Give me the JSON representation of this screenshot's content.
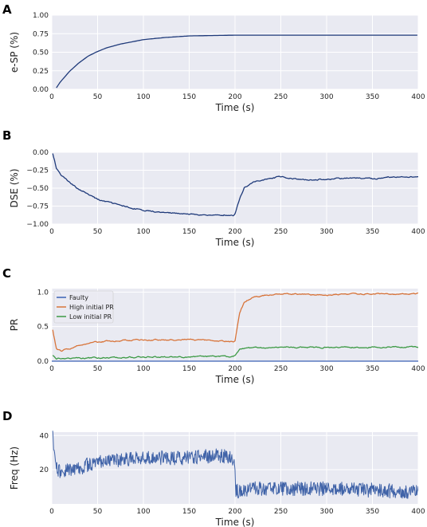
{
  "chart_data": [
    {
      "panel": "A",
      "type": "line",
      "xlabel": "Time (s)",
      "ylabel": "e-SP (%)",
      "xlim": [
        0,
        400
      ],
      "ylim": [
        0,
        1.0
      ],
      "xticks": [
        0,
        50,
        100,
        150,
        200,
        250,
        300,
        350,
        400
      ],
      "yticks": [
        0.0,
        0.25,
        0.5,
        0.75,
        1.0
      ],
      "ytick_labels": [
        "0.00",
        "0.25",
        "0.50",
        "0.75",
        "1.00"
      ],
      "grid": true,
      "series": [
        {
          "color": "#1f3a7a",
          "x": [
            5,
            10,
            20,
            30,
            40,
            50,
            60,
            75,
            100,
            125,
            150,
            175,
            200,
            250,
            300,
            350,
            400
          ],
          "y": [
            0.02,
            0.11,
            0.25,
            0.36,
            0.45,
            0.51,
            0.56,
            0.61,
            0.67,
            0.7,
            0.72,
            0.725,
            0.73,
            0.73,
            0.73,
            0.73,
            0.73
          ]
        }
      ]
    },
    {
      "panel": "B",
      "type": "line",
      "xlabel": "Time (s)",
      "ylabel": "DSE (%)",
      "xlim": [
        0,
        400
      ],
      "ylim": [
        -1.0,
        0.0
      ],
      "xticks": [
        0,
        50,
        100,
        150,
        200,
        250,
        300,
        350,
        400
      ],
      "yticks": [
        -1.0,
        -0.75,
        -0.5,
        -0.25,
        0.0
      ],
      "ytick_labels": [
        "−1.00",
        "−0.75",
        "−0.50",
        "−0.25",
        "0.00"
      ],
      "grid": true,
      "series": [
        {
          "color": "#1f3a7a",
          "x": [
            1,
            5,
            10,
            20,
            30,
            40,
            50,
            75,
            100,
            125,
            150,
            175,
            190,
            198,
            200,
            205,
            210,
            220,
            230,
            240,
            250,
            275,
            300,
            325,
            350,
            375,
            400
          ],
          "y": [
            -0.02,
            -0.22,
            -0.32,
            -0.43,
            -0.52,
            -0.58,
            -0.66,
            -0.74,
            -0.81,
            -0.84,
            -0.86,
            -0.88,
            -0.87,
            -0.88,
            -0.86,
            -0.65,
            -0.5,
            -0.42,
            -0.38,
            -0.36,
            -0.34,
            -0.38,
            -0.38,
            -0.36,
            -0.37,
            -0.34,
            -0.34
          ]
        }
      ]
    },
    {
      "panel": "C",
      "type": "line",
      "xlabel": "Time (s)",
      "ylabel": "PR",
      "xlim": [
        0,
        400
      ],
      "ylim": [
        0,
        1.05
      ],
      "xticks": [
        0,
        50,
        100,
        150,
        200,
        250,
        300,
        350,
        400
      ],
      "yticks": [
        0.0,
        0.5,
        1.0
      ],
      "ytick_labels": [
        "0.0",
        "0.5",
        "1.0"
      ],
      "grid": true,
      "legend": "top-left",
      "series": [
        {
          "name": "Faulty",
          "color": "#3b62b5",
          "x": [
            0,
            50,
            100,
            150,
            200,
            250,
            300,
            350,
            400
          ],
          "y": [
            0.0,
            0.0,
            0.0,
            0.0,
            0.0,
            0.0,
            0.0,
            0.0,
            0.0
          ]
        },
        {
          "name": "High initial PR",
          "color": "#d8743a",
          "x": [
            1,
            5,
            10,
            20,
            30,
            50,
            75,
            100,
            125,
            150,
            175,
            198,
            200,
            205,
            210,
            220,
            230,
            250,
            275,
            300,
            325,
            350,
            375,
            400
          ],
          "y": [
            0.45,
            0.18,
            0.15,
            0.18,
            0.24,
            0.28,
            0.3,
            0.31,
            0.31,
            0.31,
            0.3,
            0.28,
            0.3,
            0.7,
            0.85,
            0.93,
            0.95,
            0.97,
            0.97,
            0.96,
            0.97,
            0.98,
            0.97,
            0.98
          ]
        },
        {
          "name": "Low initial PR",
          "color": "#3d9a45",
          "x": [
            1,
            5,
            10,
            20,
            50,
            100,
            150,
            198,
            200,
            205,
            210,
            220,
            250,
            300,
            350,
            400
          ],
          "y": [
            0.08,
            0.04,
            0.04,
            0.04,
            0.05,
            0.06,
            0.06,
            0.07,
            0.08,
            0.16,
            0.18,
            0.19,
            0.2,
            0.2,
            0.2,
            0.2
          ]
        }
      ]
    },
    {
      "panel": "D",
      "type": "line",
      "xlabel": "Time (s)",
      "ylabel": "Freq (Hz)",
      "xlim": [
        0,
        400
      ],
      "ylim": [
        0,
        42
      ],
      "xticks": [
        0,
        50,
        100,
        150,
        200,
        250,
        300,
        350,
        400
      ],
      "yticks": [
        20,
        40
      ],
      "ytick_labels": [
        "20",
        "40"
      ],
      "grid": true,
      "series": [
        {
          "color": "#4063a8",
          "x": [
            1,
            4,
            10,
            20,
            30,
            40,
            50,
            60,
            75,
            100,
            125,
            150,
            175,
            195,
            199,
            201,
            205,
            215,
            250,
            300,
            350,
            400
          ],
          "y": [
            40,
            22,
            18,
            20,
            21,
            23,
            24,
            25,
            26,
            27,
            27,
            27,
            28,
            28,
            26,
            8,
            7,
            9,
            9,
            9,
            8,
            7
          ]
        }
      ]
    }
  ]
}
